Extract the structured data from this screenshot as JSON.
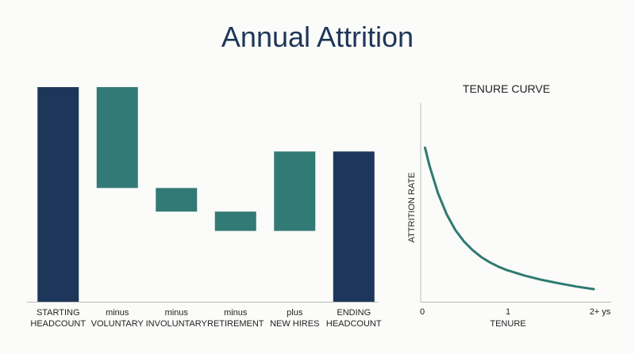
{
  "title": "Annual Attrition",
  "colors": {
    "total": "#1d3659",
    "change": "#327a75",
    "axis": "#bbbbbb",
    "curve": "#2e7a72",
    "title": "#1d3658"
  },
  "chart_data": [
    {
      "type": "bar",
      "subtype": "waterfall",
      "categories": [
        [
          "STARTING",
          "HEADCOUNT"
        ],
        [
          "minus",
          "VOLUNTARY"
        ],
        [
          "minus",
          "INVOLUNTARY"
        ],
        [
          "minus",
          "RETIREMENT"
        ],
        [
          "plus",
          "NEW HIRES"
        ],
        [
          "ENDING",
          "HEADCOUNT"
        ]
      ],
      "bars": [
        {
          "kind": "total",
          "low": 0,
          "high": 100
        },
        {
          "kind": "change",
          "low": 53,
          "high": 100
        },
        {
          "kind": "change",
          "low": 42,
          "high": 53
        },
        {
          "kind": "change",
          "low": 33,
          "high": 42
        },
        {
          "kind": "change",
          "low": 33,
          "high": 70
        },
        {
          "kind": "total",
          "low": 0,
          "high": 70
        }
      ],
      "ylim": [
        0,
        100
      ],
      "grid": false
    },
    {
      "type": "line",
      "title": "TENURE CURVE",
      "xlabel": "TENURE",
      "ylabel": "ATTRITION RATE",
      "x_ticks": [
        "0",
        "1",
        "2+ ys"
      ],
      "xlim": [
        0,
        2
      ],
      "ylim": [
        0,
        1
      ],
      "x": [
        0.05,
        0.1,
        0.2,
        0.3,
        0.4,
        0.5,
        0.6,
        0.7,
        0.8,
        0.9,
        1.0,
        1.2,
        1.4,
        1.6,
        1.8,
        2.0
      ],
      "y": [
        0.88,
        0.78,
        0.62,
        0.5,
        0.41,
        0.345,
        0.295,
        0.255,
        0.225,
        0.2,
        0.18,
        0.15,
        0.125,
        0.105,
        0.087,
        0.072
      ],
      "grid": false
    }
  ]
}
